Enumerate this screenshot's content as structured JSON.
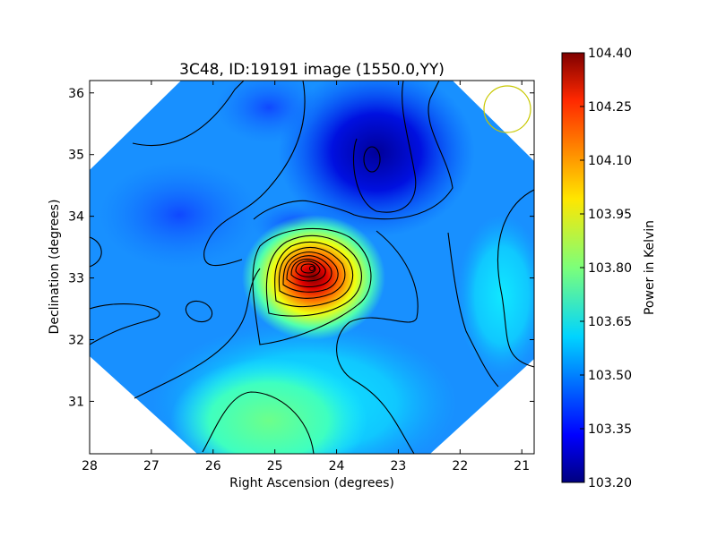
{
  "chart_data": {
    "type": "heatmap",
    "title": "3C48, ID:19191 image (1550.0,YY)",
    "xlabel": "Right Ascension (degrees)",
    "ylabel": "Declination (degrees)",
    "x_axis_reversed": true,
    "xlim": [
      28.0,
      20.8
    ],
    "ylim": [
      30.15,
      36.2
    ],
    "x_ticks": [
      "28",
      "27",
      "26",
      "25",
      "24",
      "23",
      "22",
      "21"
    ],
    "y_ticks": [
      "31",
      "32",
      "33",
      "34",
      "35",
      "36"
    ],
    "field_shape": "diamond",
    "peak": {
      "ra": 24.4,
      "dec": 33.1,
      "value": 104.4
    },
    "minimum": {
      "ra": 23.5,
      "dec": 34.8,
      "value": 103.2
    },
    "contours": "black lines",
    "beam_marker": {
      "ra": 21.3,
      "dec": 35.7,
      "color": "#c8c800"
    },
    "colorbar": {
      "label": "Power in Kelvin",
      "range": [
        103.2,
        104.4
      ],
      "colormap": "jet",
      "ticks": [
        "104.40",
        "104.25",
        "104.10",
        "103.95",
        "103.80",
        "103.65",
        "103.50",
        "103.35",
        "103.20"
      ]
    }
  }
}
